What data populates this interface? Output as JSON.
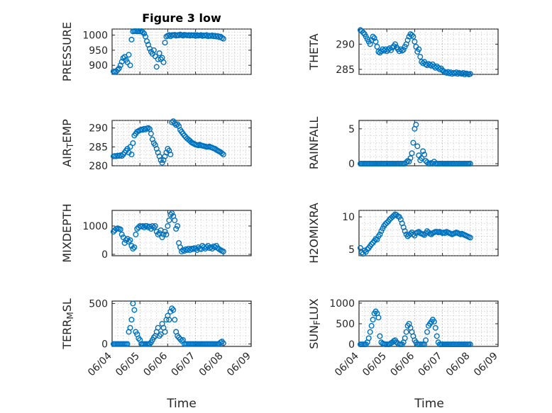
{
  "figure": {
    "title": "Figure 3 low",
    "xlabel": "Time",
    "x_tick_labels": [
      "06/04",
      "06/05",
      "06/06",
      "06/07",
      "06/08",
      "06/09"
    ]
  },
  "chart_data": [
    {
      "type": "scatter",
      "ylabel": "PRESSURE",
      "ylim": [
        870,
        1020
      ],
      "yticks": [
        900,
        950,
        1000
      ],
      "xlim": [
        0,
        5
      ],
      "grid": true,
      "marker_color": "#0072BD",
      "x": [
        0.05,
        0.1,
        0.15,
        0.2,
        0.25,
        0.3,
        0.35,
        0.4,
        0.45,
        0.5,
        0.55,
        0.6,
        0.65,
        0.7,
        0.75,
        0.8,
        0.85,
        0.9,
        0.95,
        1.0,
        1.05,
        1.1,
        1.15,
        1.2,
        1.25,
        1.3,
        1.35,
        1.4,
        1.45,
        1.5,
        1.55,
        1.6,
        1.65,
        1.7,
        1.75,
        1.8,
        1.85,
        1.9,
        1.95,
        2.0,
        2.05,
        2.1,
        2.15,
        2.2,
        2.25,
        2.3,
        2.35,
        2.4,
        2.45,
        2.5,
        2.55,
        2.6,
        2.65,
        2.7,
        2.75,
        2.8,
        2.85,
        2.9,
        2.95,
        3.0,
        3.05,
        3.1,
        3.15,
        3.2,
        3.25,
        3.3,
        3.35,
        3.4,
        3.45,
        3.5,
        3.55,
        3.6,
        3.65,
        3.7,
        3.75,
        3.8,
        3.85,
        3.9,
        3.95,
        4.0
      ],
      "y": [
        880,
        878,
        880,
        885,
        890,
        900,
        912,
        924,
        928,
        918,
        910,
        935,
        900,
        985,
        1012,
        1013,
        1013,
        1012,
        1013,
        1012,
        1013,
        1010,
        1005,
        995,
        980,
        968,
        955,
        945,
        938,
        950,
        930,
        895,
        920,
        940,
        920,
        925,
        910,
        975,
        995,
        998,
        1000,
        996,
        1000,
        1000,
        1001,
        998,
        1000,
        999,
        1002,
        1000,
        998,
        1001,
        1000,
        999,
        1000,
        998,
        1000,
        999,
        1000,
        997,
        1000,
        998,
        999,
        1000,
        997,
        999,
        998,
        1000,
        996,
        998,
        997,
        999,
        996,
        998,
        995,
        997,
        993,
        995,
        991,
        988
      ]
    },
    {
      "type": "scatter",
      "ylabel": "THETA",
      "ylim": [
        284,
        293
      ],
      "yticks": [
        285,
        290
      ],
      "xlim": [
        0,
        5
      ],
      "grid": true,
      "marker_color": "#0072BD",
      "x": [
        0.05,
        0.1,
        0.15,
        0.2,
        0.25,
        0.3,
        0.35,
        0.4,
        0.45,
        0.5,
        0.55,
        0.6,
        0.65,
        0.7,
        0.75,
        0.8,
        0.85,
        0.9,
        0.95,
        1.0,
        1.05,
        1.1,
        1.15,
        1.2,
        1.25,
        1.3,
        1.35,
        1.4,
        1.45,
        1.5,
        1.55,
        1.6,
        1.65,
        1.7,
        1.75,
        1.8,
        1.85,
        1.9,
        1.95,
        2.0,
        2.05,
        2.1,
        2.15,
        2.2,
        2.25,
        2.3,
        2.35,
        2.4,
        2.45,
        2.5,
        2.55,
        2.6,
        2.65,
        2.7,
        2.75,
        2.8,
        2.85,
        2.9,
        2.95,
        3.0,
        3.05,
        3.1,
        3.15,
        3.2,
        3.25,
        3.3,
        3.35,
        3.4,
        3.45,
        3.5,
        3.55,
        3.6,
        3.65,
        3.7,
        3.75,
        3.8,
        3.85,
        3.9,
        3.95,
        4.0
      ],
      "y": [
        292.8,
        292.6,
        292.3,
        292.0,
        291.5,
        291.0,
        290.5,
        290.0,
        290.8,
        291.5,
        291.2,
        290.5,
        289.5,
        288.5,
        288.3,
        288.6,
        289.0,
        288.7,
        289.0,
        288.6,
        288.9,
        289.2,
        288.8,
        289.3,
        289.6,
        290.0,
        289.4,
        289.0,
        288.6,
        289.0,
        288.7,
        288.9,
        289.5,
        290.0,
        290.8,
        291.5,
        292.0,
        291.8,
        291.5,
        290.5,
        289.5,
        288.5,
        289.0,
        287.5,
        286.5,
        286.2,
        286.5,
        286.0,
        285.8,
        286.1,
        285.9,
        285.7,
        286.0,
        285.6,
        285.3,
        285.6,
        285.3,
        285.0,
        285.2,
        284.8,
        284.6,
        284.4,
        284.3,
        284.5,
        284.2,
        284.4,
        284.1,
        284.3,
        284.2,
        284.4,
        284.1,
        284.3,
        284.2,
        284.1,
        284.3,
        284.0,
        284.2,
        284.1,
        284.0,
        284.1
      ]
    },
    {
      "type": "scatter",
      "ylabel": "AIR_TEMP",
      "ylim": [
        280,
        292
      ],
      "yticks": [
        280,
        285,
        290
      ],
      "xlim": [
        0,
        5
      ],
      "grid": true,
      "marker_color": "#0072BD",
      "x": [
        0.05,
        0.1,
        0.15,
        0.2,
        0.25,
        0.3,
        0.35,
        0.4,
        0.45,
        0.5,
        0.55,
        0.6,
        0.65,
        0.7,
        0.75,
        0.8,
        0.85,
        0.9,
        0.95,
        1.0,
        1.05,
        1.1,
        1.15,
        1.2,
        1.25,
        1.3,
        1.35,
        1.4,
        1.45,
        1.5,
        1.55,
        1.6,
        1.65,
        1.7,
        1.75,
        1.8,
        1.85,
        1.9,
        1.95,
        2.0,
        2.05,
        2.1,
        2.15,
        2.2,
        2.25,
        2.3,
        2.35,
        2.4,
        2.45,
        2.5,
        2.55,
        2.6,
        2.65,
        2.7,
        2.75,
        2.8,
        2.85,
        2.9,
        2.95,
        3.0,
        3.05,
        3.1,
        3.15,
        3.2,
        3.25,
        3.3,
        3.35,
        3.4,
        3.45,
        3.5,
        3.55,
        3.6,
        3.65,
        3.7,
        3.75,
        3.8,
        3.85,
        3.9,
        3.95,
        4.0
      ],
      "y": [
        282.5,
        282.6,
        282.5,
        282.7,
        282.6,
        282.8,
        282.6,
        283.0,
        283.5,
        284.0,
        284.5,
        283.5,
        285.0,
        283.0,
        286.0,
        288.0,
        288.5,
        289.0,
        289.2,
        289.4,
        289.6,
        289.5,
        289.8,
        289.6,
        289.9,
        290.0,
        289.7,
        288.5,
        287.0,
        286.0,
        285.5,
        284.5,
        283.5,
        282.5,
        281.5,
        280.8,
        281.5,
        282.5,
        283.5,
        284.5,
        284.0,
        283.0,
        291.5,
        291.8,
        291.2,
        290.8,
        291.0,
        290.5,
        289.5,
        289.0,
        288.5,
        288.0,
        287.6,
        287.2,
        286.9,
        286.6,
        286.2,
        286.0,
        285.8,
        285.6,
        285.5,
        285.4,
        285.6,
        285.4,
        285.3,
        285.2,
        285.1,
        285.0,
        285.0,
        285.1,
        284.9,
        284.8,
        284.6,
        284.5,
        284.2,
        284.0,
        283.8,
        283.6,
        283.3,
        283.0
      ]
    },
    {
      "type": "scatter",
      "ylabel": "RAINFALL",
      "ylim": [
        -0.3,
        6.2
      ],
      "yticks": [
        0,
        5
      ],
      "xlim": [
        0,
        5
      ],
      "grid": true,
      "marker_color": "#0072BD",
      "x": [
        0.05,
        0.1,
        0.15,
        0.2,
        0.25,
        0.3,
        0.35,
        0.4,
        0.45,
        0.5,
        0.55,
        0.6,
        0.65,
        0.7,
        0.75,
        0.8,
        0.85,
        0.9,
        0.95,
        1.0,
        1.05,
        1.1,
        1.15,
        1.2,
        1.25,
        1.3,
        1.35,
        1.4,
        1.45,
        1.5,
        1.55,
        1.6,
        1.65,
        1.7,
        1.75,
        1.8,
        1.85,
        1.9,
        1.95,
        2.0,
        2.05,
        2.1,
        2.15,
        2.2,
        2.25,
        2.3,
        2.35,
        2.4,
        2.45,
        2.5,
        2.55,
        2.6,
        2.65,
        2.7,
        2.75,
        2.8,
        2.85,
        2.9,
        2.95,
        3.0,
        3.05,
        3.1,
        3.15,
        3.2,
        3.25,
        3.3,
        3.35,
        3.4,
        3.45,
        3.5,
        3.55,
        3.6,
        3.65,
        3.7,
        3.75,
        3.8,
        3.85,
        3.9,
        3.95,
        4.0
      ],
      "y": [
        0,
        0,
        0,
        0,
        0,
        0,
        0,
        0,
        0,
        0,
        0,
        0,
        0,
        0,
        0,
        0,
        0,
        0,
        0,
        0,
        0,
        0,
        0,
        0,
        0,
        0,
        0,
        0,
        0,
        0,
        0,
        0,
        0,
        0.2,
        0.4,
        0.3,
        0.8,
        1.5,
        3.0,
        5.0,
        5.6,
        2.5,
        1.2,
        0.5,
        0.8,
        1.8,
        1.3,
        0.4,
        0.2,
        0,
        0,
        0.1,
        0,
        0.3,
        0,
        0,
        0,
        0,
        0,
        0,
        0,
        0,
        0,
        0,
        0,
        0,
        0,
        0,
        0,
        0,
        0,
        0,
        0,
        0,
        0,
        0,
        0,
        0,
        0,
        0
      ]
    },
    {
      "type": "scatter",
      "ylabel": "MIXDEPTH",
      "ylim": [
        -50,
        1550
      ],
      "yticks": [
        0,
        1000
      ],
      "xlim": [
        0,
        5
      ],
      "grid": true,
      "marker_color": "#0072BD",
      "x": [
        0.05,
        0.1,
        0.15,
        0.2,
        0.25,
        0.3,
        0.35,
        0.4,
        0.45,
        0.5,
        0.55,
        0.6,
        0.65,
        0.7,
        0.75,
        0.8,
        0.85,
        0.9,
        0.95,
        1.0,
        1.05,
        1.1,
        1.15,
        1.2,
        1.25,
        1.3,
        1.35,
        1.4,
        1.45,
        1.5,
        1.55,
        1.6,
        1.65,
        1.7,
        1.75,
        1.8,
        1.85,
        1.9,
        1.95,
        2.0,
        2.05,
        2.1,
        2.15,
        2.2,
        2.25,
        2.3,
        2.35,
        2.4,
        2.45,
        2.5,
        2.55,
        2.6,
        2.65,
        2.7,
        2.75,
        2.8,
        2.85,
        2.9,
        2.95,
        3.0,
        3.05,
        3.1,
        3.15,
        3.2,
        3.25,
        3.3,
        3.35,
        3.4,
        3.45,
        3.5,
        3.55,
        3.6,
        3.65,
        3.7,
        3.75,
        3.8,
        3.85,
        3.9,
        3.95,
        4.0
      ],
      "y": [
        800,
        850,
        900,
        920,
        900,
        880,
        700,
        600,
        400,
        500,
        550,
        450,
        500,
        300,
        200,
        250,
        700,
        900,
        950,
        1000,
        980,
        1000,
        950,
        1000,
        1000,
        950,
        980,
        900,
        1000,
        950,
        1000,
        800,
        700,
        750,
        850,
        600,
        700,
        800,
        700,
        1000,
        1200,
        1400,
        1450,
        1350,
        1200,
        900,
        1000,
        400,
        250,
        100,
        150,
        120,
        180,
        150,
        200,
        150,
        200,
        180,
        220,
        200,
        150,
        250,
        200,
        180,
        300,
        250,
        200,
        250,
        300,
        220,
        250,
        200,
        280,
        250,
        300,
        220,
        180,
        150,
        120,
        100
      ]
    },
    {
      "type": "scatter",
      "ylabel": "H2OMIXRA",
      "ylim": [
        4,
        11
      ],
      "yticks": [
        5,
        10
      ],
      "xlim": [
        0,
        5
      ],
      "grid": true,
      "marker_color": "#0072BD",
      "x": [
        0.05,
        0.1,
        0.15,
        0.2,
        0.25,
        0.3,
        0.35,
        0.4,
        0.45,
        0.5,
        0.55,
        0.6,
        0.65,
        0.7,
        0.75,
        0.8,
        0.85,
        0.9,
        0.95,
        1.0,
        1.05,
        1.1,
        1.15,
        1.2,
        1.25,
        1.3,
        1.35,
        1.4,
        1.45,
        1.5,
        1.55,
        1.6,
        1.65,
        1.7,
        1.75,
        1.8,
        1.85,
        1.9,
        1.95,
        2.0,
        2.05,
        2.1,
        2.15,
        2.2,
        2.25,
        2.3,
        2.35,
        2.4,
        2.45,
        2.5,
        2.55,
        2.6,
        2.65,
        2.7,
        2.75,
        2.8,
        2.85,
        2.9,
        2.95,
        3.0,
        3.05,
        3.1,
        3.15,
        3.2,
        3.25,
        3.3,
        3.35,
        3.4,
        3.45,
        3.5,
        3.55,
        3.6,
        3.65,
        3.7,
        3.75,
        3.8,
        3.85,
        3.9,
        3.95,
        4.0
      ],
      "y": [
        5.2,
        4.5,
        4.3,
        4.8,
        4.6,
        5.0,
        5.2,
        5.5,
        5.8,
        6.0,
        6.3,
        6.6,
        6.5,
        7.0,
        7.3,
        7.8,
        8.2,
        8.6,
        8.9,
        9.1,
        9.3,
        9.6,
        9.8,
        10.0,
        10.2,
        10.4,
        10.3,
        10.1,
        10.0,
        9.6,
        9.0,
        8.4,
        7.8,
        7.3,
        7.0,
        7.2,
        7.4,
        7.6,
        7.3,
        7.1,
        7.5,
        7.6,
        7.7,
        7.5,
        7.4,
        7.3,
        7.2,
        7.5,
        7.8,
        7.6,
        7.4,
        7.3,
        7.5,
        7.6,
        7.7,
        7.7,
        7.6,
        7.7,
        7.6,
        7.5,
        7.6,
        7.5,
        7.7,
        7.6,
        7.5,
        7.4,
        7.3,
        7.4,
        7.5,
        7.6,
        7.5,
        7.4,
        7.3,
        7.4,
        7.3,
        7.2,
        7.1,
        7.0,
        6.9,
        6.8
      ]
    },
    {
      "type": "scatter",
      "ylabel": "TERR_MSL",
      "ylim": [
        -30,
        530
      ],
      "yticks": [
        0,
        500
      ],
      "xlim": [
        0,
        5
      ],
      "grid": true,
      "marker_color": "#0072BD",
      "x": [
        0.05,
        0.1,
        0.15,
        0.2,
        0.25,
        0.3,
        0.35,
        0.4,
        0.45,
        0.5,
        0.55,
        0.6,
        0.65,
        0.7,
        0.75,
        0.8,
        0.85,
        0.9,
        0.95,
        1.0,
        1.05,
        1.1,
        1.15,
        1.2,
        1.25,
        1.3,
        1.35,
        1.4,
        1.45,
        1.5,
        1.55,
        1.6,
        1.65,
        1.7,
        1.75,
        1.8,
        1.85,
        1.9,
        1.95,
        2.0,
        2.05,
        2.1,
        2.15,
        2.2,
        2.25,
        2.3,
        2.35,
        2.4,
        2.45,
        2.5,
        2.55,
        2.6,
        2.65,
        2.7,
        2.75,
        2.8,
        2.85,
        2.9,
        2.95,
        3.0,
        3.05,
        3.1,
        3.15,
        3.2,
        3.25,
        3.3,
        3.35,
        3.4,
        3.45,
        3.5,
        3.55,
        3.6,
        3.65,
        3.7,
        3.75,
        3.8,
        3.85,
        3.9,
        3.95,
        4.0
      ],
      "y": [
        0,
        0,
        0,
        0,
        0,
        0,
        0,
        0,
        0,
        0,
        0,
        150,
        200,
        300,
        500,
        420,
        150,
        120,
        70,
        50,
        0,
        0,
        0,
        0,
        0,
        0,
        0,
        20,
        50,
        80,
        100,
        150,
        200,
        100,
        120,
        250,
        200,
        150,
        300,
        350,
        300,
        400,
        440,
        420,
        300,
        150,
        100,
        80,
        60,
        40,
        50,
        0,
        0,
        0,
        0,
        0,
        0,
        0,
        0,
        0,
        0,
        0,
        0,
        0,
        0,
        0,
        0,
        0,
        0,
        0,
        0,
        0,
        0,
        0,
        0,
        0,
        0,
        20,
        30,
        10
      ]
    },
    {
      "type": "scatter",
      "ylabel": "SUN_FLUX",
      "ylim": [
        -50,
        1050
      ],
      "yticks": [
        0,
        500,
        1000
      ],
      "xlim": [
        0,
        5
      ],
      "grid": true,
      "marker_color": "#0072BD",
      "x": [
        0.05,
        0.1,
        0.15,
        0.2,
        0.25,
        0.3,
        0.35,
        0.4,
        0.45,
        0.5,
        0.55,
        0.6,
        0.65,
        0.7,
        0.75,
        0.8,
        0.85,
        0.9,
        0.95,
        1.0,
        1.05,
        1.1,
        1.15,
        1.2,
        1.25,
        1.3,
        1.35,
        1.4,
        1.45,
        1.5,
        1.55,
        1.6,
        1.65,
        1.7,
        1.75,
        1.8,
        1.85,
        1.9,
        1.95,
        2.0,
        2.05,
        2.1,
        2.15,
        2.2,
        2.25,
        2.3,
        2.35,
        2.4,
        2.45,
        2.5,
        2.55,
        2.6,
        2.65,
        2.7,
        2.75,
        2.8,
        2.85,
        2.9,
        2.95,
        3.0,
        3.05,
        3.1,
        3.15,
        3.2,
        3.25,
        3.3,
        3.35,
        3.4,
        3.45,
        3.5,
        3.55,
        3.6,
        3.65,
        3.7,
        3.75,
        3.8,
        3.85,
        3.9,
        3.95,
        4.0
      ],
      "y": [
        0,
        0,
        0,
        0,
        0,
        50,
        150,
        300,
        450,
        600,
        750,
        800,
        750,
        650,
        200,
        50,
        20,
        10,
        0,
        0,
        0,
        0,
        30,
        50,
        80,
        100,
        50,
        20,
        0,
        0,
        0,
        50,
        150,
        300,
        450,
        500,
        400,
        300,
        200,
        100,
        50,
        0,
        0,
        0,
        0,
        0,
        0,
        100,
        300,
        450,
        500,
        550,
        600,
        550,
        400,
        200,
        50,
        0,
        0,
        0,
        0,
        0,
        0,
        0,
        0,
        0,
        0,
        0,
        0,
        0,
        0,
        0,
        0,
        0,
        0,
        0,
        0,
        0,
        0,
        0
      ]
    }
  ]
}
